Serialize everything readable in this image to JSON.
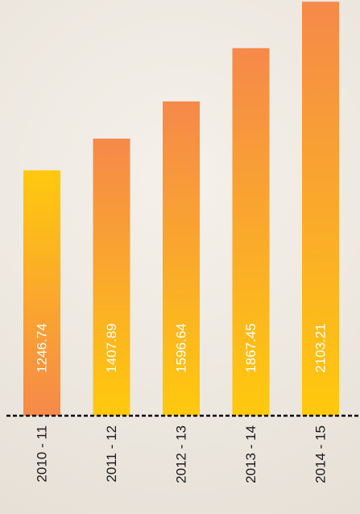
{
  "chart_data": {
    "type": "bar",
    "title": "",
    "xlabel": "",
    "ylabel": "",
    "categories": [
      "2010 - 11",
      "2011 - 12",
      "2012 - 13",
      "2013 - 14",
      "2014 - 15"
    ],
    "values": [
      1246.74,
      1407.89,
      1596.64,
      1867.45,
      2103.21
    ],
    "data_labels": [
      "1246.74",
      "1407.89",
      "1596.64",
      "1867.45",
      "2103.21"
    ],
    "axis_style": "dashed-baseline",
    "grid": false,
    "legend": "none",
    "colors": {
      "bar_bottom": "#ffc90d",
      "bar_top": "#f5894a",
      "alt_bar_bottom": "#f5894a",
      "alt_bar_top": "#ffc90d",
      "data_label": "#ffffff",
      "tick_label": "#1a1a1a",
      "baseline": "#000000"
    }
  }
}
